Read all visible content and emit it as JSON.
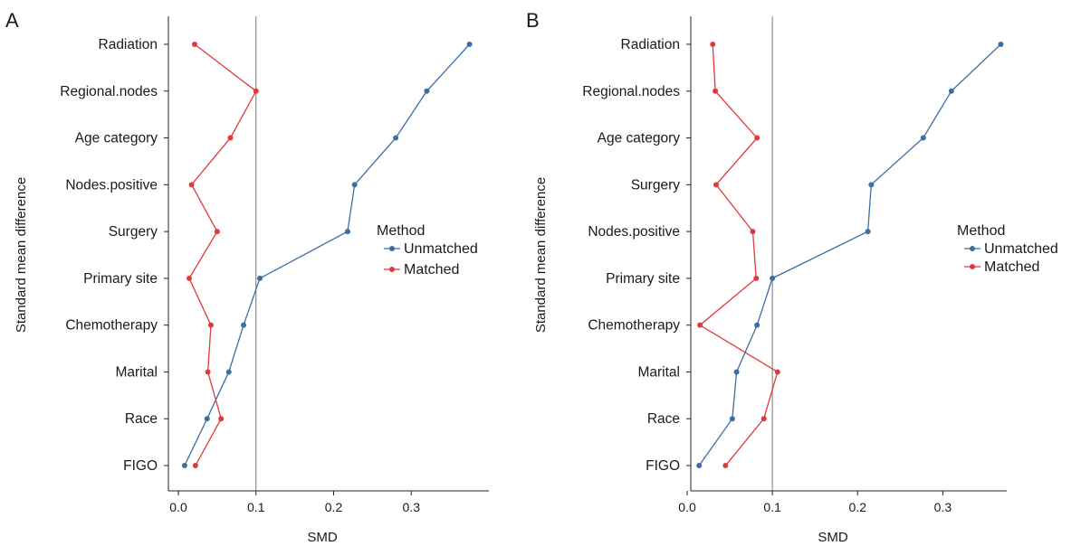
{
  "chart_data": [
    {
      "type": "line",
      "panel_label": "A",
      "xlabel": "SMD",
      "ylabel": "Standard mean difference",
      "xlim": [
        0,
        0.4
      ],
      "xticks": [
        "0.0",
        "0.1",
        "0.2",
        "0.3"
      ],
      "categories": [
        "Radiation",
        "Regional.nodes",
        "Age category",
        "Nodes.positive",
        "Surgery",
        "Primary site",
        "Chemotherapy",
        "Marital",
        "Race",
        "FIGO"
      ],
      "reference_line": 0.1,
      "legend": {
        "title": "Method",
        "position": "right"
      },
      "series": [
        {
          "name": "Unmatched",
          "color": "#3a6ea5",
          "values": [
            0.375,
            0.32,
            0.28,
            0.227,
            0.218,
            0.105,
            0.084,
            0.065,
            0.037,
            0.008
          ]
        },
        {
          "name": "Matched",
          "color": "#e03a3a",
          "values": [
            0.021,
            0.1,
            0.067,
            0.017,
            0.05,
            0.014,
            0.042,
            0.038,
            0.055,
            0.022
          ]
        }
      ]
    },
    {
      "type": "line",
      "panel_label": "B",
      "xlabel": "SMD",
      "ylabel": "Standard mean difference",
      "xlim": [
        0,
        0.375
      ],
      "xticks": [
        "0.0",
        "0.1",
        "0.2",
        "0.3"
      ],
      "categories": [
        "Radiation",
        "Regional.nodes",
        "Age category",
        "Surgery",
        "Nodes.positive",
        "Primary site",
        "Chemotherapy",
        "Marital",
        "Race",
        "FIGO"
      ],
      "reference_line": 0.1,
      "legend": {
        "title": "Method",
        "position": "right"
      },
      "series": [
        {
          "name": "Unmatched",
          "color": "#3a6ea5",
          "values": [
            0.368,
            0.31,
            0.277,
            0.216,
            0.212,
            0.1,
            0.082,
            0.058,
            0.053,
            0.014
          ]
        },
        {
          "name": "Matched",
          "color": "#e03a3a",
          "values": [
            0.03,
            0.033,
            0.082,
            0.034,
            0.077,
            0.081,
            0.015,
            0.106,
            0.09,
            0.045
          ]
        }
      ]
    }
  ]
}
